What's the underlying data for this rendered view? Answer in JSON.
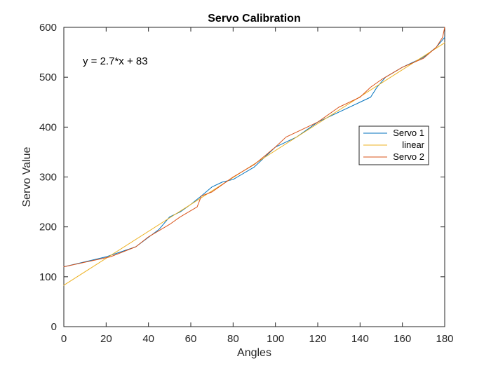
{
  "chart_data": {
    "type": "line",
    "title": "Servo Calibration",
    "xlabel": "Angles",
    "ylabel": "Servo Value",
    "xlim": [
      0,
      180
    ],
    "ylim": [
      0,
      600
    ],
    "x_ticks": [
      "0",
      "20",
      "40",
      "60",
      "80",
      "100",
      "120",
      "140",
      "160",
      "180"
    ],
    "y_ticks": [
      "0",
      "100",
      "200",
      "300",
      "400",
      "500",
      "600"
    ],
    "grid": false,
    "legend_position": "right",
    "annotation": "y = 2.7*x + 83",
    "series": [
      {
        "name": "Servo 1",
        "color": "#0072BD",
        "x": [
          0,
          20,
          34,
          45,
          50,
          55,
          60,
          65,
          70,
          75,
          80,
          82,
          90,
          100,
          110,
          120,
          130,
          140,
          145,
          148,
          152,
          160,
          170,
          176,
          180
        ],
        "y": [
          120,
          140,
          160,
          195,
          220,
          230,
          245,
          262,
          280,
          290,
          295,
          300,
          320,
          360,
          380,
          410,
          430,
          450,
          460,
          480,
          500,
          520,
          540,
          560,
          580
        ]
      },
      {
        "name": "linear",
        "color": "#EDB120",
        "x": [
          0,
          180
        ],
        "y": [
          83,
          569
        ]
      },
      {
        "name": "Servo 2",
        "color": "#D95319",
        "x": [
          0,
          22,
          34,
          40,
          50,
          55,
          63,
          65,
          70,
          75,
          80,
          90,
          100,
          105,
          115,
          120,
          130,
          140,
          145,
          150,
          160,
          170,
          176,
          179,
          180
        ],
        "y": [
          120,
          140,
          160,
          180,
          205,
          220,
          240,
          262,
          270,
          285,
          300,
          325,
          360,
          380,
          400,
          410,
          440,
          460,
          480,
          495,
          520,
          538,
          560,
          580,
          600
        ]
      }
    ]
  }
}
